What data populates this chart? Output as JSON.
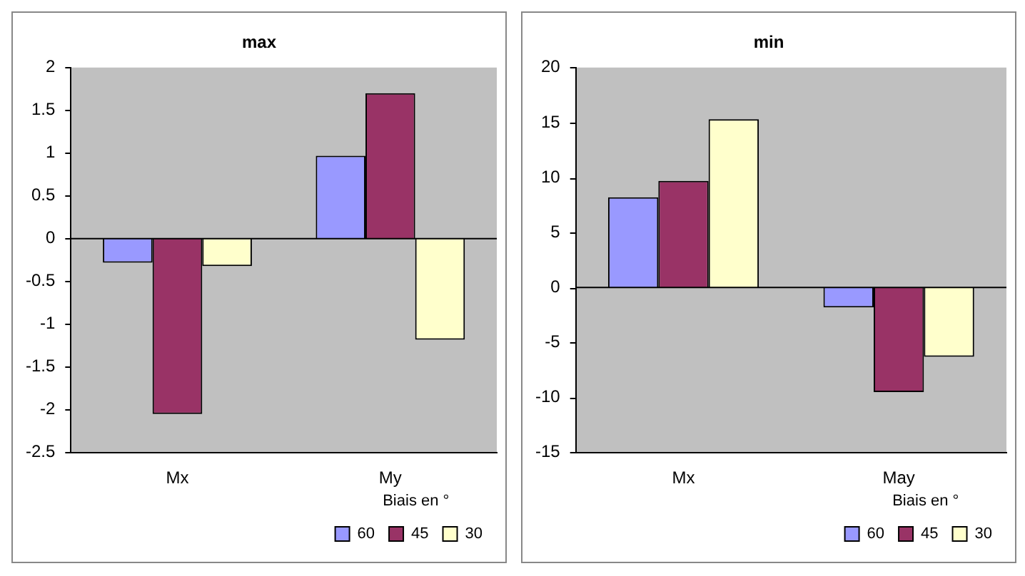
{
  "chart_data": [
    {
      "type": "bar",
      "title": "max",
      "categories": [
        "Mx",
        "My"
      ],
      "legend_title": "Biais en °",
      "legend": "bottom right",
      "ref_lines": [
        {
          "axis": "y",
          "value": 0,
          "color": "#000000"
        }
      ],
      "ylim": [
        -2.5,
        2
      ],
      "yticks": [
        -2.5,
        -2,
        -1.5,
        -1,
        -0.5,
        0,
        0.5,
        1,
        1.5,
        2
      ],
      "series": [
        {
          "name": "60",
          "color": "#9999ff",
          "values": [
            -0.28,
            0.97
          ]
        },
        {
          "name": "45",
          "color": "#993366",
          "values": [
            -2.05,
            1.7
          ]
        },
        {
          "name": "30",
          "color": "#ffffcc",
          "values": [
            -0.32,
            -1.18
          ]
        }
      ]
    },
    {
      "type": "bar",
      "title": "min",
      "categories": [
        "Mx",
        "May"
      ],
      "legend_title": "Biais en °",
      "legend": "bottom right",
      "ref_lines": [
        {
          "axis": "y",
          "value": 0,
          "color": "#000000"
        }
      ],
      "ylim": [
        -15,
        20
      ],
      "yticks": [
        -15,
        -10,
        -5,
        0,
        5,
        10,
        15,
        20
      ],
      "series": [
        {
          "name": "60",
          "color": "#9999ff",
          "values": [
            8.2,
            -1.8
          ]
        },
        {
          "name": "45",
          "color": "#993366",
          "values": [
            9.7,
            -9.5
          ]
        },
        {
          "name": "30",
          "color": "#ffffcc",
          "values": [
            15.3,
            -6.3
          ]
        }
      ]
    }
  ]
}
